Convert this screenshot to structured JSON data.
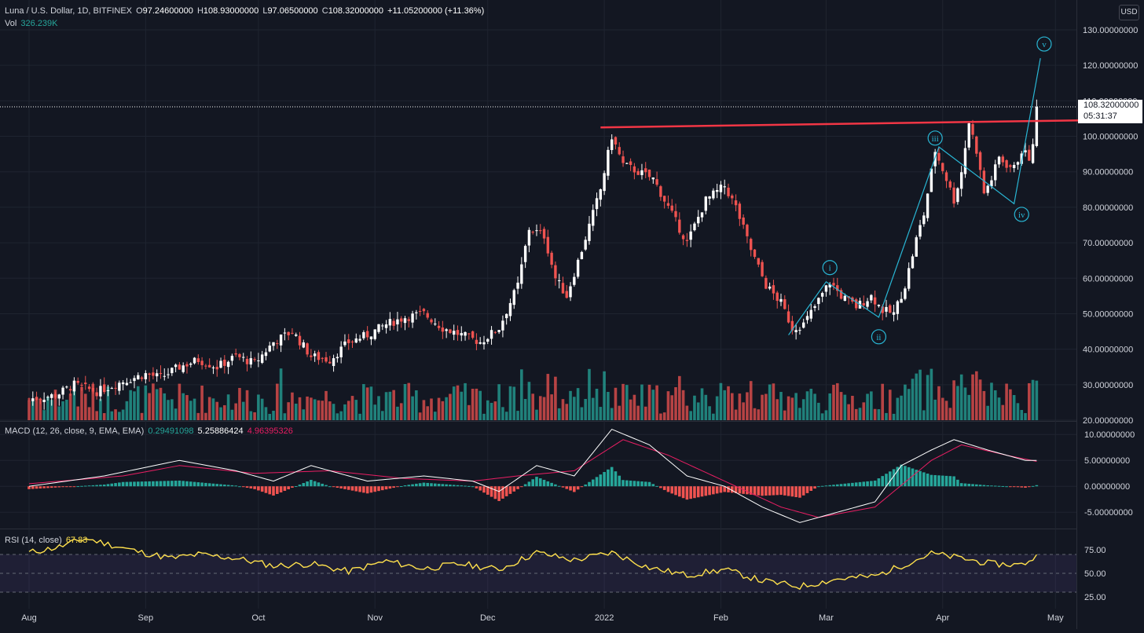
{
  "header": {
    "symbol": "Luna / U.S. Dollar, 1D, BITFINEX",
    "o_label": "O",
    "o_value": "97.24600000",
    "h_label": "H",
    "h_value": "108.93000000",
    "l_label": "L",
    "l_value": "97.06500000",
    "c_label": "C",
    "c_value": "108.32000000",
    "change": "+11.05200000 (+11.36%)",
    "vol_label": "Vol",
    "vol_value": "326.239K",
    "currency": "USD"
  },
  "last_price": {
    "value": "108.32000000",
    "countdown": "05:31:37"
  },
  "colors": {
    "background": "#131722",
    "grid": "#1f2430",
    "up": "#ffffff",
    "down": "#ef5350",
    "vol_up": "#26a69a",
    "vol_down": "#ef5350",
    "wave": "#29b6d4",
    "resistance": "#f23645",
    "macd_line": "#ffffff",
    "signal_line": "#e91e63",
    "rsi": "#ffe14d",
    "axis_text": "#d1d4dc"
  },
  "chart_data": [
    {
      "type": "candlestick",
      "name": "price",
      "y_ticks": [
        "20.00000000",
        "30.00000000",
        "40.00000000",
        "50.00000000",
        "60.00000000",
        "70.00000000",
        "80.00000000",
        "90.00000000",
        "100.00000000",
        "110.00000000",
        "120.00000000",
        "130.00000000"
      ],
      "ylim": [
        20,
        130
      ],
      "x_ticks": [
        "Aug",
        "Sep",
        "Oct",
        "Nov",
        "Dec",
        "2022",
        "Feb",
        "Mar",
        "Apr",
        "May"
      ],
      "x_tick_days": [
        0,
        31,
        61,
        92,
        122,
        153,
        184,
        212,
        243,
        273
      ],
      "x_start": "2021-08-01",
      "close_path": [
        [
          0,
          26
        ],
        [
          7,
          27
        ],
        [
          12,
          30
        ],
        [
          18,
          28
        ],
        [
          25,
          31
        ],
        [
          31,
          33
        ],
        [
          35,
          32
        ],
        [
          40,
          35
        ],
        [
          45,
          37
        ],
        [
          50,
          35
        ],
        [
          55,
          38
        ],
        [
          60,
          36
        ],
        [
          65,
          42
        ],
        [
          70,
          45
        ],
        [
          75,
          38
        ],
        [
          80,
          37
        ],
        [
          85,
          42
        ],
        [
          90,
          44
        ],
        [
          95,
          47
        ],
        [
          100,
          49
        ],
        [
          105,
          50
        ],
        [
          110,
          46
        ],
        [
          115,
          44
        ],
        [
          120,
          42
        ],
        [
          125,
          46
        ],
        [
          130,
          58
        ],
        [
          133,
          74
        ],
        [
          137,
          72
        ],
        [
          140,
          60
        ],
        [
          143,
          55
        ],
        [
          147,
          68
        ],
        [
          152,
          85
        ],
        [
          155,
          100
        ],
        [
          158,
          92
        ],
        [
          162,
          90
        ],
        [
          166,
          88
        ],
        [
          170,
          80
        ],
        [
          175,
          70
        ],
        [
          180,
          82
        ],
        [
          185,
          86
        ],
        [
          188,
          80
        ],
        [
          192,
          68
        ],
        [
          196,
          58
        ],
        [
          200,
          53
        ],
        [
          203,
          46
        ],
        [
          206,
          47
        ],
        [
          209,
          52
        ],
        [
          213,
          59
        ],
        [
          216,
          55
        ],
        [
          220,
          52
        ],
        [
          224,
          55
        ],
        [
          227,
          51
        ],
        [
          230,
          50
        ],
        [
          233,
          58
        ],
        [
          236,
          71
        ],
        [
          238,
          78
        ],
        [
          241,
          96
        ],
        [
          244,
          88
        ],
        [
          246,
          82
        ],
        [
          248,
          90
        ],
        [
          250,
          104
        ],
        [
          252,
          96
        ],
        [
          254,
          84
        ],
        [
          256,
          88
        ],
        [
          258,
          94
        ],
        [
          260,
          92
        ],
        [
          262,
          91
        ],
        [
          264,
          96
        ],
        [
          266,
          94
        ],
        [
          267,
          97
        ],
        [
          268,
          108
        ]
      ],
      "volume_up": [
        4,
        5,
        8,
        3,
        6,
        9,
        7,
        3,
        6,
        5,
        10,
        8,
        4,
        7,
        3
      ],
      "resistance": {
        "from": [
          152,
          102.5
        ],
        "to": [
          280,
          104.5
        ]
      },
      "elliott_wave": {
        "path": [
          [
            202,
            44
          ],
          [
            212,
            59
          ],
          [
            226,
            49
          ],
          [
            242,
            97
          ],
          [
            262,
            81
          ],
          [
            269,
            122
          ]
        ],
        "labels": [
          {
            "text": "i",
            "day": 213,
            "price": 63
          },
          {
            "text": "ii",
            "day": 226,
            "price": 43.5
          },
          {
            "text": "iii",
            "day": 241,
            "price": 99.5
          },
          {
            "text": "iv",
            "day": 264,
            "price": 78
          },
          {
            "text": "v",
            "day": 270,
            "price": 126
          }
        ]
      }
    },
    {
      "type": "macd",
      "title": "MACD (12, 26, close, 9, EMA, EMA)",
      "values": [
        "0.29491098",
        "5.25886424",
        "4.96395326"
      ],
      "y_ticks": [
        "10.00000000",
        "5.00000000",
        "0.00000000",
        "-5.00000000"
      ],
      "ylim": [
        -8,
        12
      ],
      "macd_path": [
        [
          0,
          0
        ],
        [
          20,
          2
        ],
        [
          40,
          5
        ],
        [
          55,
          3
        ],
        [
          65,
          1
        ],
        [
          75,
          4
        ],
        [
          90,
          1
        ],
        [
          105,
          2
        ],
        [
          118,
          1
        ],
        [
          125,
          -1
        ],
        [
          135,
          4
        ],
        [
          145,
          2
        ],
        [
          155,
          11
        ],
        [
          165,
          8
        ],
        [
          175,
          2
        ],
        [
          185,
          0
        ],
        [
          195,
          -4
        ],
        [
          205,
          -7
        ],
        [
          215,
          -5
        ],
        [
          225,
          -3
        ],
        [
          232,
          4
        ],
        [
          240,
          7
        ],
        [
          246,
          9
        ],
        [
          255,
          7
        ],
        [
          265,
          5
        ],
        [
          268,
          5
        ]
      ],
      "signal_path": [
        [
          0,
          0.5
        ],
        [
          25,
          2
        ],
        [
          40,
          4
        ],
        [
          60,
          2.5
        ],
        [
          80,
          3
        ],
        [
          100,
          1.5
        ],
        [
          118,
          1
        ],
        [
          130,
          2
        ],
        [
          145,
          3
        ],
        [
          158,
          9
        ],
        [
          170,
          6
        ],
        [
          185,
          1
        ],
        [
          200,
          -4
        ],
        [
          210,
          -6
        ],
        [
          225,
          -4
        ],
        [
          240,
          5
        ],
        [
          248,
          8
        ],
        [
          260,
          6
        ],
        [
          268,
          4.8
        ]
      ]
    },
    {
      "type": "rsi",
      "title": "RSI (14, close)",
      "value": "67.83",
      "y_ticks": [
        "75.00",
        "50.00",
        "25.00"
      ],
      "ylim": [
        15,
        95
      ],
      "band": [
        30,
        70
      ],
      "path": [
        [
          0,
          72
        ],
        [
          8,
          78
        ],
        [
          15,
          87
        ],
        [
          22,
          80
        ],
        [
          30,
          72
        ],
        [
          38,
          66
        ],
        [
          45,
          70
        ],
        [
          55,
          66
        ],
        [
          65,
          58
        ],
        [
          75,
          60
        ],
        [
          85,
          52
        ],
        [
          95,
          63
        ],
        [
          105,
          55
        ],
        [
          115,
          60
        ],
        [
          125,
          54
        ],
        [
          135,
          72
        ],
        [
          145,
          64
        ],
        [
          155,
          72
        ],
        [
          165,
          56
        ],
        [
          175,
          48
        ],
        [
          185,
          54
        ],
        [
          195,
          42
        ],
        [
          205,
          36
        ],
        [
          215,
          44
        ],
        [
          225,
          47
        ],
        [
          232,
          58
        ],
        [
          240,
          71
        ],
        [
          248,
          66
        ],
        [
          256,
          60
        ],
        [
          264,
          59
        ],
        [
          268,
          68
        ]
      ]
    }
  ]
}
